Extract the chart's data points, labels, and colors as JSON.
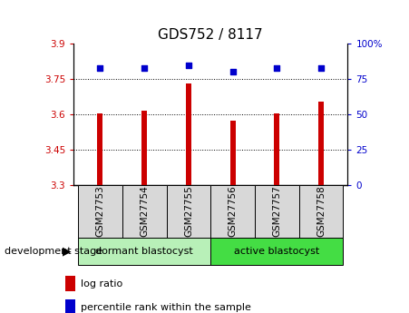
{
  "title": "GDS752 / 8117",
  "categories": [
    "GSM27753",
    "GSM27754",
    "GSM27755",
    "GSM27756",
    "GSM27757",
    "GSM27758"
  ],
  "bar_values": [
    3.605,
    3.614,
    3.732,
    3.572,
    3.602,
    3.652
  ],
  "bar_base": 3.3,
  "bar_color": "#cc0000",
  "bar_width": 0.12,
  "percentile_values": [
    82.5,
    82.5,
    85.0,
    80.5,
    82.5,
    83.0
  ],
  "percentile_color": "#0000cc",
  "ylim_left": [
    3.3,
    3.9
  ],
  "ylim_right": [
    0,
    100
  ],
  "yticks_left": [
    3.3,
    3.45,
    3.6,
    3.75,
    3.9
  ],
  "ytick_labels_left": [
    "3.3",
    "3.45",
    "3.6",
    "3.75",
    "3.9"
  ],
  "yticks_right": [
    0,
    25,
    50,
    75,
    100
  ],
  "ytick_labels_right": [
    "0",
    "25",
    "50",
    "75",
    "100%"
  ],
  "hlines": [
    3.45,
    3.6,
    3.75
  ],
  "group1_label": "dormant blastocyst",
  "group2_label": "active blastocyst",
  "group1_color": "#b8f0b8",
  "group2_color": "#44dd44",
  "dev_stage_label": "development stage",
  "legend_bar_label": "log ratio",
  "legend_pct_label": "percentile rank within the sample",
  "title_fontsize": 11,
  "tick_fontsize": 7.5,
  "label_fontsize": 8
}
